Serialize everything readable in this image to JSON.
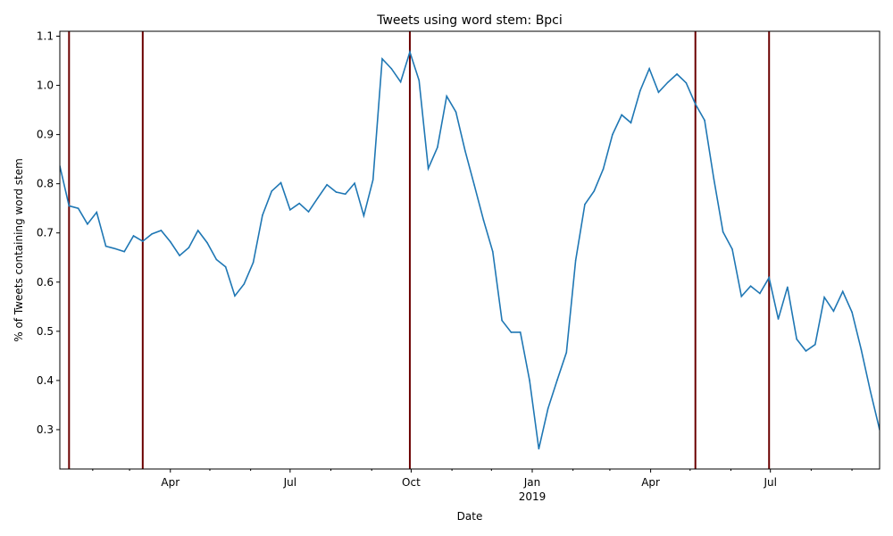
{
  "chart_data": {
    "type": "line",
    "title": "Tweets using word stem: Bpci",
    "xlabel": "Date",
    "ylabel": "% of Tweets containing word stem",
    "ylim": [
      0.22,
      1.11
    ],
    "xlim": [
      "2018-01-07",
      "2019-09-22"
    ],
    "grid": false,
    "legend": "none",
    "y_ticks": [
      0.3,
      0.4,
      0.5,
      0.6,
      0.7,
      0.8,
      0.9,
      1.0,
      1.1
    ],
    "x_ticks": [
      {
        "date": "2018-04-01",
        "label": "Apr"
      },
      {
        "date": "2018-07-01",
        "label": "Jul"
      },
      {
        "date": "2018-10-01",
        "label": "Oct"
      },
      {
        "date": "2019-01-01",
        "label": "Jan",
        "sublabel": "2019"
      },
      {
        "date": "2019-04-01",
        "label": "Apr"
      },
      {
        "date": "2019-07-01",
        "label": "Jul"
      }
    ],
    "minor_ticks": [
      "2018-01-01",
      "2018-02-01",
      "2018-03-01",
      "2018-05-01",
      "2018-06-01",
      "2018-08-01",
      "2018-09-01",
      "2018-11-01",
      "2018-12-01",
      "2019-02-01",
      "2019-03-01",
      "2019-05-01",
      "2019-06-01",
      "2019-08-01",
      "2019-09-01"
    ],
    "event_lines": [
      "2018-01-14",
      "2018-03-11",
      "2018-09-30",
      "2019-05-05",
      "2019-06-30"
    ],
    "colors": {
      "line": "#1f77b4",
      "event_line": "#6b0000"
    },
    "series": [
      {
        "x": [
          "2018-01-07",
          "2018-01-14",
          "2018-01-21",
          "2018-01-28",
          "2018-02-04",
          "2018-02-11",
          "2018-02-18",
          "2018-02-25",
          "2018-03-04",
          "2018-03-11",
          "2018-03-18",
          "2018-03-25",
          "2018-04-01",
          "2018-04-08",
          "2018-04-15",
          "2018-04-22",
          "2018-04-29",
          "2018-05-06",
          "2018-05-13",
          "2018-05-20",
          "2018-05-27",
          "2018-06-03",
          "2018-06-10",
          "2018-06-17",
          "2018-06-24",
          "2018-07-01",
          "2018-07-08",
          "2018-07-15",
          "2018-07-22",
          "2018-07-29",
          "2018-08-05",
          "2018-08-12",
          "2018-08-19",
          "2018-08-26",
          "2018-09-02",
          "2018-09-09",
          "2018-09-16",
          "2018-09-23",
          "2018-09-30",
          "2018-10-07",
          "2018-10-14",
          "2018-10-21",
          "2018-10-28",
          "2018-11-04",
          "2018-11-11",
          "2018-11-18",
          "2018-11-25",
          "2018-12-02",
          "2018-12-09",
          "2018-12-16",
          "2018-12-23",
          "2018-12-30",
          "2019-01-06",
          "2019-01-13",
          "2019-01-20",
          "2019-01-27",
          "2019-02-03",
          "2019-02-10",
          "2019-02-17",
          "2019-02-24",
          "2019-03-03",
          "2019-03-10",
          "2019-03-17",
          "2019-03-24",
          "2019-03-31",
          "2019-04-07",
          "2019-04-14",
          "2019-04-21",
          "2019-04-28",
          "2019-05-05",
          "2019-05-12",
          "2019-05-19",
          "2019-05-26",
          "2019-06-02",
          "2019-06-09",
          "2019-06-16",
          "2019-06-23",
          "2019-06-30",
          "2019-07-07",
          "2019-07-14",
          "2019-07-21",
          "2019-07-28",
          "2019-08-04",
          "2019-08-11",
          "2019-08-18",
          "2019-08-25",
          "2019-09-01",
          "2019-09-08",
          "2019-09-15",
          "2019-09-22"
        ],
        "y": [
          0.836,
          0.755,
          0.75,
          0.718,
          0.742,
          0.673,
          0.668,
          0.662,
          0.694,
          0.683,
          0.698,
          0.705,
          0.682,
          0.654,
          0.67,
          0.705,
          0.68,
          0.646,
          0.631,
          0.572,
          0.596,
          0.64,
          0.736,
          0.785,
          0.802,
          0.747,
          0.76,
          0.743,
          0.771,
          0.798,
          0.783,
          0.779,
          0.801,
          0.735,
          0.808,
          1.054,
          1.034,
          1.007,
          1.068,
          1.01,
          0.831,
          0.874,
          0.978,
          0.946,
          0.867,
          0.797,
          0.726,
          0.662,
          0.522,
          0.498,
          0.498,
          0.4,
          0.261,
          0.343,
          0.401,
          0.457,
          0.644,
          0.758,
          0.785,
          0.83,
          0.9,
          0.94,
          0.924,
          0.989,
          1.034,
          0.986,
          1.006,
          1.023,
          1.005,
          0.962,
          0.929,
          0.81,
          0.702,
          0.667,
          0.571,
          0.592,
          0.577,
          0.609,
          0.525,
          0.59,
          0.484,
          0.46,
          0.473,
          0.569,
          0.541,
          0.581,
          0.539,
          0.463,
          0.378,
          0.3
        ]
      }
    ]
  }
}
